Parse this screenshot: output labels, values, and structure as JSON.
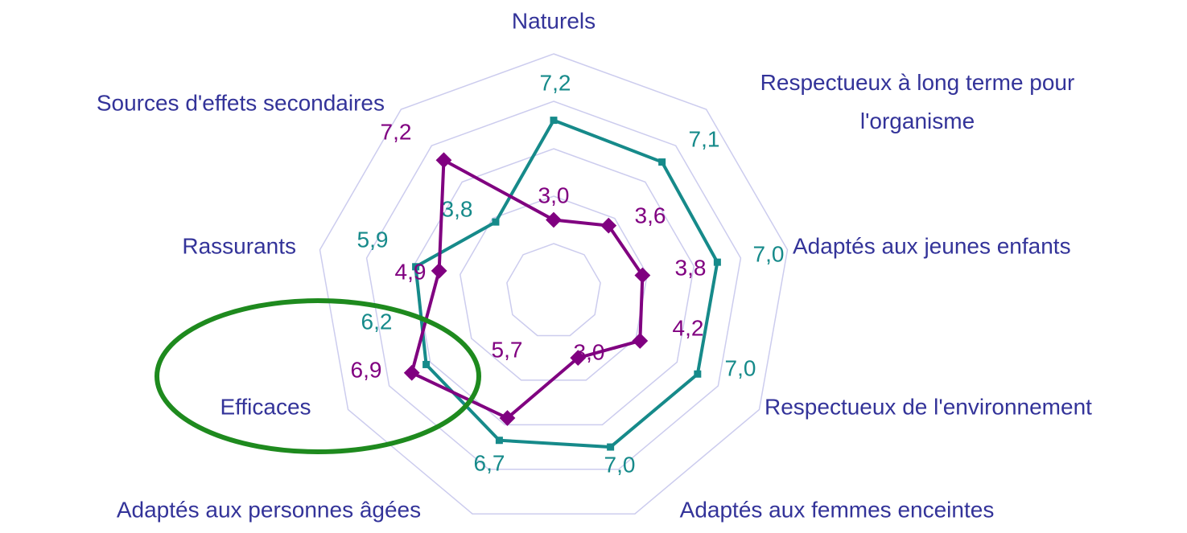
{
  "chart_data": {
    "type": "radar",
    "categories": [
      "Naturels",
      "Respectueux à long terme pour l'organisme",
      "Adaptés aux jeunes enfants",
      "Respectueux de l'environnement",
      "Adaptés aux femmes enceintes",
      "Adaptés aux personnes âgées",
      "Efficaces",
      "Rassurants",
      "Sources d'effets secondaires"
    ],
    "series": [
      {
        "color": "#168a8a",
        "values": [
          7.2,
          7.1,
          7.0,
          7.0,
          7.0,
          6.7,
          6.2,
          5.9,
          3.8
        ],
        "value_labels": [
          "7,2",
          "7,1",
          "7,0",
          "7,0",
          "7,0",
          "6,7",
          "6,2",
          "5,9",
          "3,8"
        ]
      },
      {
        "color": "#800080",
        "values": [
          3.0,
          3.6,
          3.8,
          4.2,
          3.0,
          5.7,
          6.9,
          4.9,
          7.2
        ],
        "value_labels": [
          "3,0",
          "3,6",
          "3,8",
          "4,2",
          "3,0",
          "5,7",
          "6,9",
          "4,9",
          "7,2"
        ]
      }
    ],
    "ylim": [
      0,
      10
    ],
    "yticks": [
      2,
      4,
      6,
      8,
      10
    ],
    "grid": true
  }
}
